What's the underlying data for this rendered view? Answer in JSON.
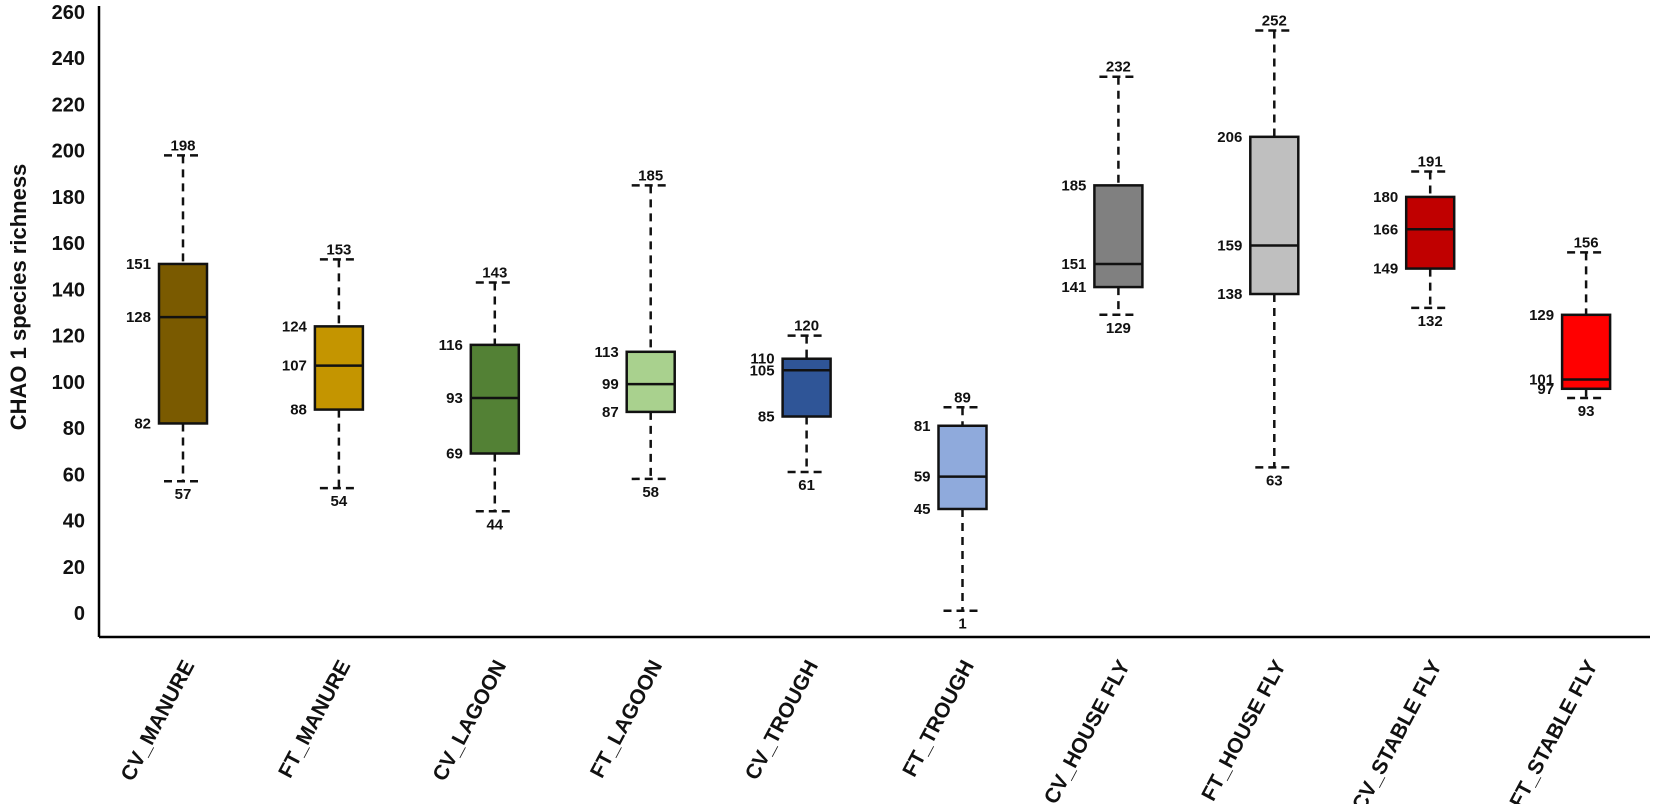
{
  "chart_data": {
    "type": "boxplot",
    "title": "",
    "xlabel": "",
    "ylabel": "CHAO 1 species richness",
    "ylim": [
      0,
      260
    ],
    "yticks": [
      0,
      20,
      40,
      60,
      80,
      100,
      120,
      140,
      160,
      180,
      200,
      220,
      240,
      260
    ],
    "grid": false,
    "categories": [
      "CV_MANURE",
      "FT_MANURE",
      "CV_LAGOON",
      "FT_LAGOON",
      "CV_TROUGH",
      "FT_TROUGH",
      "CV_HOUSE FLY",
      "FT_HOUSE FLY",
      "CV_STABLE FLY",
      "FT_STABLE FLY"
    ],
    "boxes": [
      {
        "name": "CV_MANURE",
        "min": 57,
        "q1": 82,
        "median": 128,
        "q3": 151,
        "max": 198,
        "color": "#7a5a00"
      },
      {
        "name": "FT_MANURE",
        "min": 54,
        "q1": 88,
        "median": 107,
        "q3": 124,
        "max": 153,
        "color": "#c49500"
      },
      {
        "name": "CV_LAGOON",
        "min": 44,
        "q1": 69,
        "median": 93,
        "q3": 116,
        "max": 143,
        "color": "#538135"
      },
      {
        "name": "FT_LAGOON",
        "min": 58,
        "q1": 87,
        "median": 99,
        "q3": 113,
        "max": 185,
        "color": "#a9d18e"
      },
      {
        "name": "CV_TROUGH",
        "min": 61,
        "q1": 85,
        "median": 105,
        "q3": 110,
        "max": 120,
        "color": "#2f5597"
      },
      {
        "name": "FT_TROUGH",
        "min": 1,
        "q1": 45,
        "median": 59,
        "q3": 81,
        "max": 89,
        "color": "#8faadc"
      },
      {
        "name": "CV_HOUSE FLY",
        "min": 129,
        "q1": 141,
        "median": 151,
        "q3": 185,
        "max": 232,
        "color": "#808080"
      },
      {
        "name": "FT_HOUSE FLY",
        "min": 63,
        "q1": 138,
        "median": 159,
        "q3": 206,
        "max": 252,
        "color": "#bfbfbf"
      },
      {
        "name": "CV_STABLE FLY",
        "min": 132,
        "q1": 149,
        "median": 166,
        "q3": 180,
        "max": 191,
        "color": "#c00000"
      },
      {
        "name": "FT_STABLE FLY",
        "min": 93,
        "q1": 97,
        "median": 101,
        "q3": 129,
        "max": 156,
        "color": "#ff0000"
      }
    ]
  }
}
